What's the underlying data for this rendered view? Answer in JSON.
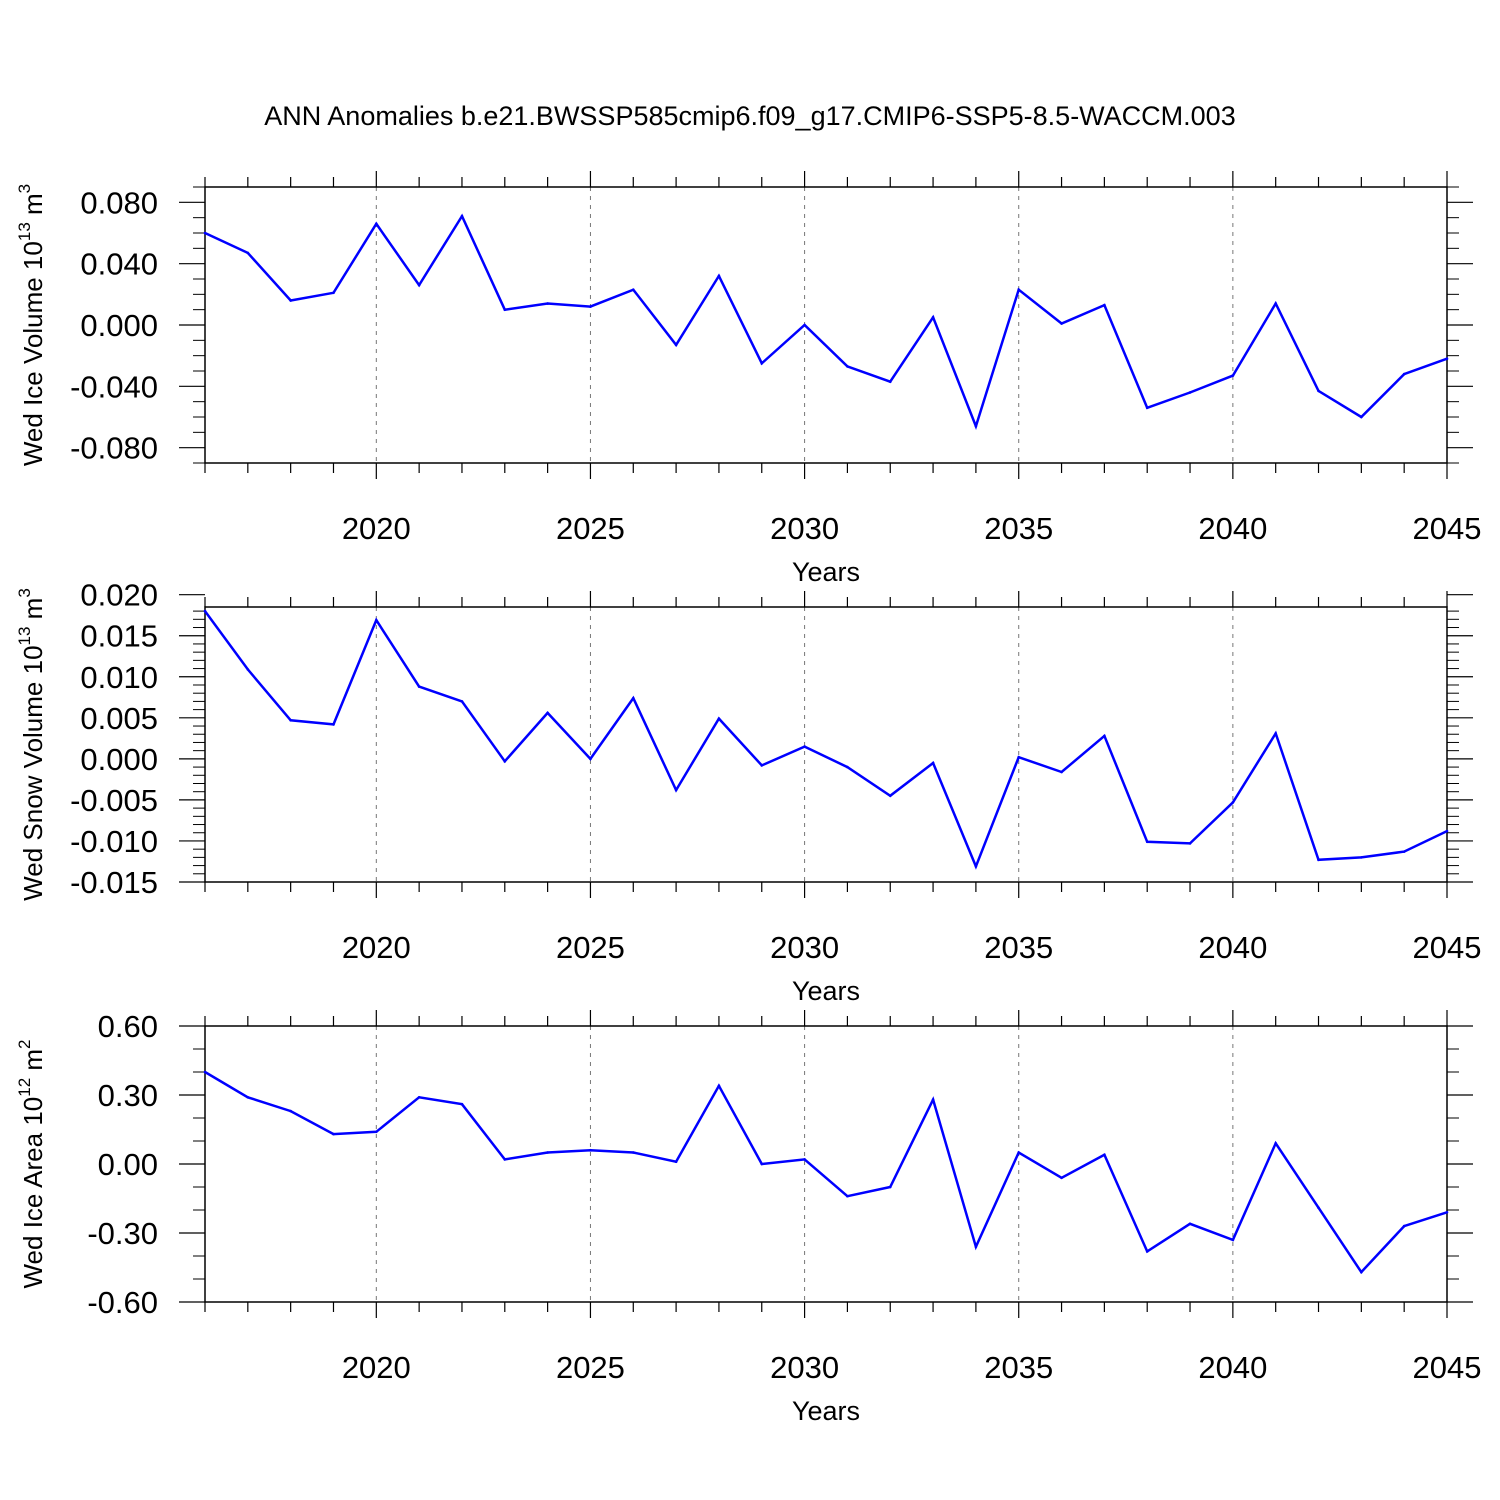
{
  "title": "ANN Anomalies b.e21.BWSSP585cmip6.f09_g17.CMIP6-SSP5-8.5-WACCM.003",
  "colors": {
    "series": "#0000ff",
    "axes": "#000000",
    "grid": "#777777"
  },
  "chart_data": [
    {
      "type": "line",
      "ylabel": {
        "main": "Wed Ice Volume 10",
        "sup": "13",
        "mid": " m",
        "sup2": "3"
      },
      "xlabel": "Years",
      "xlim": [
        2016,
        2045
      ],
      "ylim": [
        -0.09,
        0.09
      ],
      "x_ticks": [
        2020,
        2025,
        2030,
        2035,
        2040,
        2045
      ],
      "x_tick_labels": [
        "2020",
        "2025",
        "2030",
        "2035",
        "2040",
        "2045"
      ],
      "y_ticks": [
        0.08,
        0.04,
        0.0,
        -0.04,
        -0.08
      ],
      "y_tick_labels": [
        "0.080",
        "0.040",
        "0.000",
        "-0.040",
        "-0.080"
      ],
      "y_minor_step": 0.01,
      "grid": "vertical dashed at major x ticks",
      "x": [
        2016,
        2017,
        2018,
        2019,
        2020,
        2021,
        2022,
        2023,
        2024,
        2025,
        2026,
        2027,
        2028,
        2029,
        2030,
        2031,
        2032,
        2033,
        2034,
        2035,
        2036,
        2037,
        2038,
        2039,
        2040,
        2041,
        2042,
        2043,
        2044,
        2045
      ],
      "values": [
        0.06,
        0.047,
        0.016,
        0.021,
        0.066,
        0.026,
        0.071,
        0.01,
        0.014,
        0.012,
        0.023,
        -0.013,
        0.032,
        -0.025,
        0.0,
        -0.027,
        -0.037,
        0.005,
        -0.066,
        0.023,
        0.001,
        0.013,
        -0.054,
        -0.044,
        -0.033,
        0.014,
        -0.043,
        -0.06,
        -0.032,
        -0.022
      ]
    },
    {
      "type": "line",
      "ylabel": {
        "main": "Wed Snow Volume 10",
        "sup": "13",
        "mid": " m",
        "sup2": "3"
      },
      "xlabel": "Years",
      "xlim": [
        2016,
        2045
      ],
      "ylim": [
        -0.015,
        0.0185
      ],
      "x_ticks": [
        2020,
        2025,
        2030,
        2035,
        2040,
        2045
      ],
      "x_tick_labels": [
        "2020",
        "2025",
        "2030",
        "2035",
        "2040",
        "2045"
      ],
      "y_ticks": [
        0.02,
        0.015,
        0.01,
        0.005,
        0.0,
        -0.005,
        -0.01,
        -0.015
      ],
      "y_tick_labels": [
        "0.020",
        "0.015",
        "0.010",
        "0.005",
        "0.000",
        "-0.005",
        "-0.010",
        "-0.015"
      ],
      "y_minor_step": 0.001,
      "grid": "vertical dashed at major x ticks",
      "x": [
        2016,
        2017,
        2018,
        2019,
        2020,
        2021,
        2022,
        2023,
        2024,
        2025,
        2026,
        2027,
        2028,
        2029,
        2030,
        2031,
        2032,
        2033,
        2034,
        2035,
        2036,
        2037,
        2038,
        2039,
        2040,
        2041,
        2042,
        2043,
        2044,
        2045
      ],
      "values": [
        0.018,
        0.0109,
        0.0047,
        0.0042,
        0.0169,
        0.0088,
        0.007,
        -0.0003,
        0.0056,
        -0.0,
        0.0074,
        -0.0038,
        0.0049,
        -0.0008,
        0.0015,
        -0.001,
        -0.0045,
        -0.0005,
        -0.0131,
        0.0002,
        -0.0016,
        0.0028,
        -0.0101,
        -0.0103,
        -0.0053,
        0.0031,
        -0.0123,
        -0.012,
        -0.0113,
        -0.0088
      ]
    },
    {
      "type": "line",
      "ylabel": {
        "main": "Wed Ice Area 10",
        "sup": "12",
        "mid": " m",
        "sup2": "2"
      },
      "xlabel": "Years",
      "xlim": [
        2016,
        2045
      ],
      "ylim": [
        -0.6,
        0.6
      ],
      "x_ticks": [
        2020,
        2025,
        2030,
        2035,
        2040,
        2045
      ],
      "x_tick_labels": [
        "2020",
        "2025",
        "2030",
        "2035",
        "2040",
        "2045"
      ],
      "y_ticks": [
        0.6,
        0.3,
        0.0,
        -0.3,
        -0.6
      ],
      "y_tick_labels": [
        "0.60",
        "0.30",
        "0.00",
        "-0.30",
        "-0.60"
      ],
      "y_minor_step": 0.1,
      "grid": "vertical dashed at major x ticks",
      "x": [
        2016,
        2017,
        2018,
        2019,
        2020,
        2021,
        2022,
        2023,
        2024,
        2025,
        2026,
        2027,
        2028,
        2029,
        2030,
        2031,
        2032,
        2033,
        2034,
        2035,
        2036,
        2037,
        2038,
        2039,
        2040,
        2041,
        2042,
        2043,
        2044,
        2045
      ],
      "values": [
        0.4,
        0.29,
        0.23,
        0.13,
        0.14,
        0.29,
        0.26,
        0.02,
        0.05,
        0.06,
        0.05,
        0.01,
        0.34,
        0.0,
        0.02,
        -0.14,
        -0.1,
        0.28,
        -0.36,
        0.05,
        -0.06,
        0.04,
        -0.38,
        -0.26,
        -0.33,
        0.09,
        -0.19,
        -0.47,
        -0.27,
        -0.21
      ]
    }
  ]
}
